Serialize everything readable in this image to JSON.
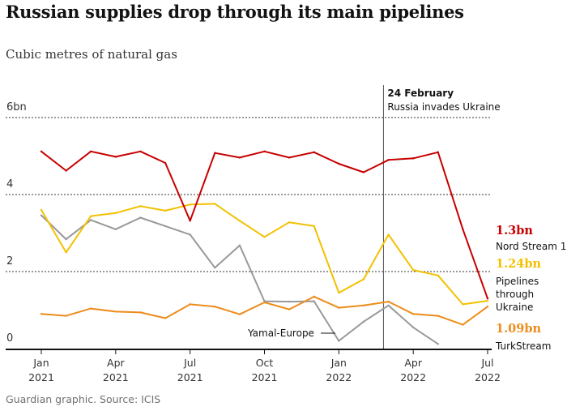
{
  "header": {
    "title": "Russian supplies drop through its main pipelines",
    "subtitle": "Cubic metres of natural gas"
  },
  "footer": {
    "source": "Guardian graphic. Source: ICIS"
  },
  "chart_data": {
    "type": "line",
    "title": "Russian supplies drop through its main pipelines",
    "subtitle": "Cubic metres of natural gas",
    "xlabel": "",
    "ylabel": "",
    "ylim": [
      0,
      6
    ],
    "y_ticks": [
      {
        "value": 0,
        "label": "0"
      },
      {
        "value": 2,
        "label": "2"
      },
      {
        "value": 4,
        "label": "4"
      },
      {
        "value": 6,
        "label": "6bn"
      }
    ],
    "x_ticks": [
      {
        "month": 0,
        "month_label": "Jan",
        "year_label": "2021"
      },
      {
        "month": 3,
        "month_label": "Apr",
        "year_label": "2021"
      },
      {
        "month": 6,
        "month_label": "Jul",
        "year_label": "2021"
      },
      {
        "month": 9,
        "month_label": "Oct",
        "year_label": "2021"
      },
      {
        "month": 12,
        "month_label": "Jan",
        "year_label": "2022"
      },
      {
        "month": 15,
        "month_label": "Apr",
        "year_label": "2022"
      },
      {
        "month": 18,
        "month_label": "Jul",
        "year_label": "2022"
      }
    ],
    "x_unit": "months since Jan 2021",
    "grid": "dotted horizontal at 2, 4, 6",
    "event": {
      "month": 13.8,
      "date": "24 February",
      "text": "Russia invades Ukraine"
    },
    "series": [
      {
        "name": "Nord Stream 1",
        "color": "#c70000",
        "end_value_label": "1.3bn",
        "x": [
          0,
          1,
          2,
          3,
          4,
          5,
          6,
          7,
          8,
          9,
          10,
          11,
          12,
          13,
          14,
          15,
          16,
          17,
          18
        ],
        "values": [
          5.12,
          4.62,
          5.12,
          4.98,
          5.12,
          4.82,
          3.32,
          5.08,
          4.96,
          5.12,
          4.96,
          5.1,
          4.8,
          4.58,
          4.9,
          4.94,
          5.1,
          3.1,
          1.3
        ]
      },
      {
        "name": "Pipelines through Ukraine",
        "name_lines": [
          "Pipelines",
          "through",
          "Ukraine"
        ],
        "color": "#f3c100",
        "end_value_label": "1.24bn",
        "x": [
          0,
          1,
          2,
          3,
          4,
          5,
          6,
          7,
          8,
          9,
          10,
          11,
          12,
          13,
          14,
          15,
          16,
          17,
          18
        ],
        "values": [
          3.6,
          2.5,
          3.44,
          3.52,
          3.7,
          3.58,
          3.74,
          3.76,
          3.32,
          2.9,
          3.28,
          3.18,
          1.45,
          1.8,
          2.96,
          2.04,
          1.9,
          1.15,
          1.24
        ]
      },
      {
        "name": "TurkStream",
        "color": "#ed8c1b",
        "end_value_label": "1.09bn",
        "x": [
          0,
          1,
          2,
          3,
          4,
          5,
          6,
          7,
          8,
          9,
          10,
          11,
          12,
          13,
          14,
          15,
          16,
          17,
          18
        ],
        "values": [
          0.9,
          0.85,
          1.04,
          0.96,
          0.94,
          0.79,
          1.15,
          1.09,
          0.89,
          1.2,
          1.02,
          1.35,
          1.06,
          1.12,
          1.22,
          0.9,
          0.85,
          0.62,
          1.09
        ]
      },
      {
        "name": "Yamal-Europe",
        "color": "#999999",
        "x": [
          0,
          1,
          2,
          3,
          4,
          5,
          6,
          7,
          8,
          9,
          10,
          11,
          12,
          13,
          14,
          15,
          16
        ],
        "values": [
          3.46,
          2.84,
          3.34,
          3.1,
          3.4,
          3.18,
          2.96,
          2.1,
          2.68,
          1.23,
          1.22,
          1.23,
          0.2,
          0.7,
          1.12,
          0.55,
          0.12
        ]
      }
    ]
  }
}
